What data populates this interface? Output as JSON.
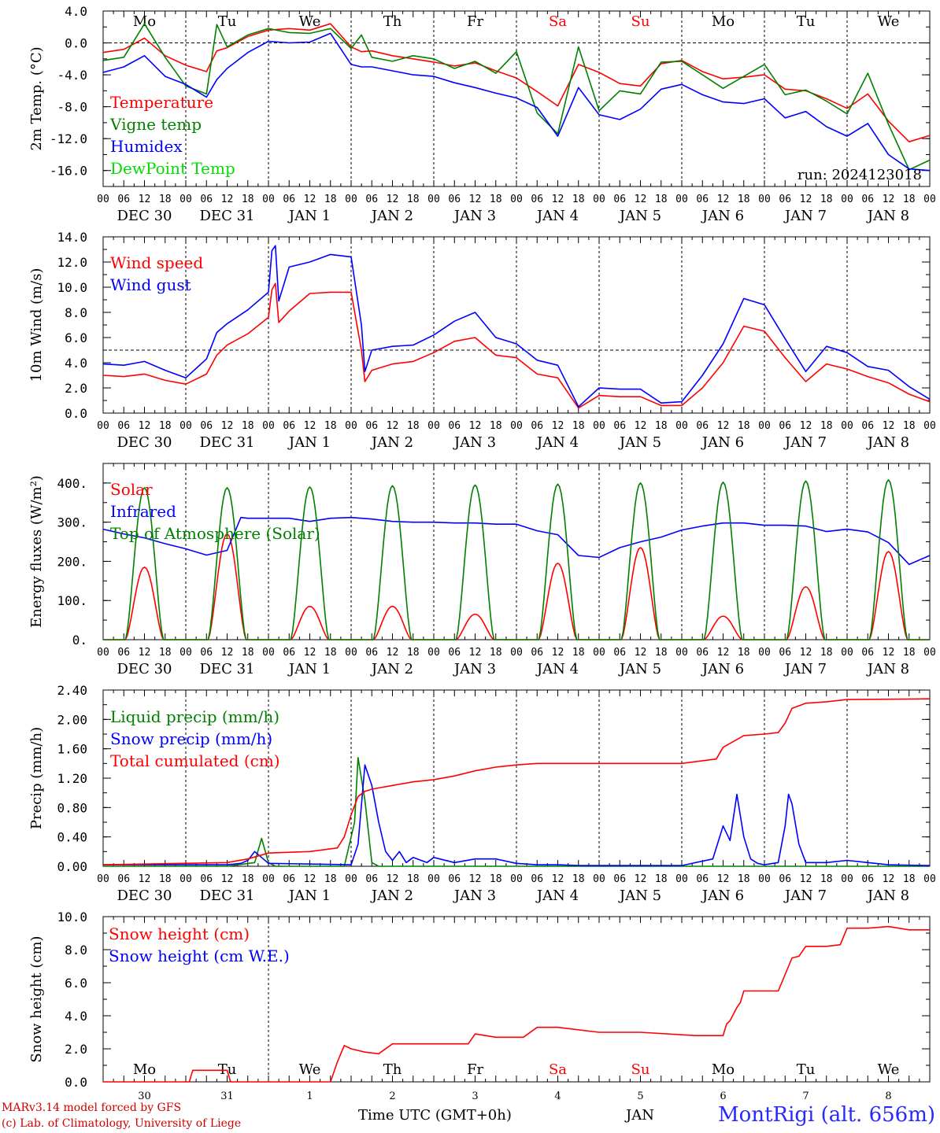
{
  "run_label": "run: 2024123018",
  "footer": {
    "model": "MARv3.14 model forced by GFS",
    "lab": "(c) Lab. of Climatology, University of Liege",
    "time_axis": "Time UTC (GMT+0h)",
    "month": "JAN",
    "station": "MontRigi (alt. 656m)"
  },
  "days": {
    "weekdays": [
      "Mo",
      "Tu",
      "We",
      "Th",
      "Fr",
      "Sa",
      "Su",
      "Mo",
      "Tu",
      "We"
    ],
    "weekend_flags": [
      false,
      false,
      false,
      false,
      false,
      true,
      true,
      false,
      false,
      false
    ],
    "dates": [
      "DEC 30",
      "DEC 31",
      "JAN  1",
      "JAN  2",
      "JAN  3",
      "JAN  4",
      "JAN  5",
      "JAN  6",
      "JAN  7",
      "JAN  8"
    ],
    "day_numbers": [
      "30",
      "31",
      "1",
      "2",
      "3",
      "4",
      "5",
      "6",
      "7",
      "8"
    ],
    "hour_ticks": [
      "00",
      "06",
      "12",
      "18"
    ],
    "last_tick": "00"
  },
  "colors": {
    "red": "#ff0000",
    "green": "#008000",
    "blue": "#0000ff",
    "lightgreen": "#00dd00",
    "weekend": "#ff0000"
  },
  "chart_data": [
    {
      "type": "line",
      "ylabel": "2m Temp. (°C)",
      "ylim": [
        -18,
        4
      ],
      "yticks": [
        4.0,
        0.0,
        -4.0,
        -8.0,
        -12.0,
        -16.0
      ],
      "ytick_labels": [
        "4.0",
        "0.0",
        "-4.0",
        "-8.0",
        "-12.0",
        "-16.0"
      ],
      "reference_line": 0.0,
      "x_unit": "hours since DEC 30 00 UTC",
      "series": [
        {
          "name": "Temperature",
          "color": "#ff0000",
          "x": [
            0,
            6,
            12,
            18,
            24,
            30,
            33,
            36,
            42,
            48,
            54,
            60,
            66,
            72,
            75,
            78,
            84,
            90,
            96,
            102,
            108,
            114,
            120,
            126,
            132,
            138,
            144,
            150,
            156,
            162,
            168,
            174,
            180,
            186,
            192,
            198,
            204,
            210,
            216,
            222,
            228,
            234,
            240
          ],
          "y": [
            -1.2,
            -0.8,
            0.6,
            -1.6,
            -2.8,
            -3.6,
            -1.0,
            -0.6,
            0.8,
            1.6,
            1.8,
            1.6,
            2.4,
            -0.5,
            -1.1,
            -1.0,
            -1.6,
            -2.0,
            -2.4,
            -2.9,
            -2.5,
            -3.5,
            -4.4,
            -6.1,
            -7.9,
            -2.7,
            -3.7,
            -5.1,
            -5.4,
            -2.6,
            -2.2,
            -3.6,
            -4.5,
            -4.3,
            -4.0,
            -5.8,
            -6.0,
            -7.0,
            -8.2,
            -6.4,
            -9.8,
            -12.4,
            -11.6
          ]
        },
        {
          "name": "Vigne temp",
          "color": "#008000",
          "x": [
            0,
            6,
            12,
            18,
            24,
            30,
            33,
            36,
            42,
            48,
            54,
            60,
            66,
            72,
            75,
            78,
            84,
            90,
            96,
            102,
            108,
            114,
            120,
            126,
            132,
            138,
            144,
            150,
            156,
            162,
            168,
            174,
            180,
            186,
            192,
            198,
            204,
            210,
            216,
            222,
            228,
            234,
            240
          ],
          "y": [
            -2.2,
            -1.8,
            2.4,
            -1.8,
            -5.4,
            -6.4,
            2.3,
            -0.5,
            1.0,
            1.8,
            1.3,
            1.2,
            1.8,
            -0.7,
            1.0,
            -1.8,
            -2.3,
            -1.6,
            -2.0,
            -3.2,
            -2.3,
            -3.8,
            -1.1,
            -8.8,
            -11.4,
            -0.5,
            -8.5,
            -6.0,
            -6.4,
            -2.4,
            -2.3,
            -4.0,
            -5.7,
            -4.2,
            -2.7,
            -6.5,
            -5.9,
            -7.3,
            -8.9,
            -3.8,
            -10.2,
            -15.9,
            -14.7
          ]
        },
        {
          "name": "Humidex",
          "color": "#0000ff",
          "x": [
            0,
            6,
            12,
            18,
            24,
            30,
            33,
            36,
            42,
            48,
            54,
            60,
            66,
            72,
            75,
            78,
            84,
            90,
            96,
            102,
            108,
            114,
            120,
            126,
            132,
            138,
            144,
            150,
            156,
            162,
            168,
            174,
            180,
            186,
            192,
            198,
            204,
            210,
            216,
            222,
            228,
            234,
            240
          ],
          "y": [
            -3.7,
            -3.0,
            -1.6,
            -4.2,
            -5.2,
            -6.8,
            -4.6,
            -3.2,
            -1.2,
            0.2,
            0.0,
            0.1,
            1.2,
            -2.7,
            -3.0,
            -3.0,
            -3.5,
            -4.0,
            -4.2,
            -5.0,
            -5.6,
            -6.3,
            -6.9,
            -8.1,
            -11.7,
            -5.6,
            -9.0,
            -9.6,
            -8.3,
            -5.8,
            -5.2,
            -6.5,
            -7.4,
            -7.6,
            -7.0,
            -9.4,
            -8.6,
            -10.5,
            -11.7,
            -10.1,
            -14.0,
            -15.8,
            -16.0
          ]
        },
        {
          "name": "DewPoint Temp",
          "color": "#00dd00",
          "x": [],
          "y": []
        }
      ]
    },
    {
      "type": "line",
      "ylabel": "10m Wind (m/s)",
      "ylim": [
        0,
        14
      ],
      "yticks": [
        0,
        2,
        4,
        6,
        8,
        10,
        12,
        14
      ],
      "ytick_labels": [
        "0.0",
        "2.0",
        "4.0",
        "6.0",
        "8.0",
        "10.0",
        "12.0",
        "14.0"
      ],
      "reference_line": 5.0,
      "x_unit": "hours since DEC 30 00 UTC",
      "series": [
        {
          "name": "Wind speed",
          "color": "#ff0000",
          "x": [
            0,
            6,
            12,
            18,
            24,
            30,
            33,
            36,
            42,
            48,
            49,
            50,
            51,
            54,
            60,
            66,
            72,
            75,
            76,
            78,
            84,
            90,
            96,
            102,
            108,
            114,
            120,
            126,
            132,
            138,
            144,
            150,
            156,
            162,
            168,
            174,
            180,
            186,
            192,
            198,
            204,
            210,
            216,
            222,
            228,
            234,
            240
          ],
          "y": [
            3.0,
            2.9,
            3.1,
            2.6,
            2.3,
            3.1,
            4.6,
            5.4,
            6.3,
            7.6,
            9.8,
            10.3,
            7.2,
            8.1,
            9.5,
            9.6,
            9.6,
            5.0,
            2.5,
            3.4,
            3.9,
            4.1,
            4.8,
            5.7,
            6.0,
            4.6,
            4.4,
            3.1,
            2.8,
            0.4,
            1.4,
            1.3,
            1.3,
            0.6,
            0.6,
            2.0,
            4.0,
            6.9,
            6.5,
            4.4,
            2.5,
            3.9,
            3.5,
            2.9,
            2.4,
            1.5,
            0.9
          ]
        },
        {
          "name": "Wind gust",
          "color": "#0000ff",
          "x": [
            0,
            6,
            12,
            18,
            24,
            30,
            33,
            36,
            42,
            48,
            49,
            50,
            51,
            54,
            60,
            66,
            72,
            75,
            76,
            78,
            84,
            90,
            96,
            102,
            108,
            114,
            120,
            126,
            132,
            138,
            144,
            150,
            156,
            162,
            168,
            174,
            180,
            186,
            192,
            198,
            204,
            210,
            216,
            222,
            228,
            234,
            240
          ],
          "y": [
            3.9,
            3.8,
            4.1,
            3.4,
            2.8,
            4.3,
            6.4,
            7.1,
            8.2,
            9.6,
            12.9,
            13.3,
            8.9,
            11.6,
            12.0,
            12.6,
            12.4,
            7.0,
            3.3,
            5.0,
            5.3,
            5.4,
            6.2,
            7.3,
            8.0,
            6.0,
            5.5,
            4.2,
            3.8,
            0.5,
            2.0,
            1.9,
            1.9,
            0.8,
            0.9,
            3.0,
            5.5,
            9.1,
            8.6,
            5.9,
            3.3,
            5.3,
            4.8,
            3.7,
            3.4,
            2.1,
            1.1
          ]
        }
      ]
    },
    {
      "type": "line",
      "ylabel": "Energy fluxes (W/m²)",
      "ylim": [
        0,
        450
      ],
      "yticks": [
        0,
        100,
        200,
        300,
        400
      ],
      "ytick_labels": [
        "0.",
        "100.",
        "200.",
        "300.",
        "400."
      ],
      "x_unit": "hours since DEC 30 00 UTC",
      "series": [
        {
          "name": "Solar",
          "color": "#ff0000",
          "profile": "daily",
          "peaks": [
            185,
            270,
            85,
            85,
            65,
            195,
            235,
            60,
            135,
            225
          ]
        },
        {
          "name": "Infrared",
          "color": "#0000ff",
          "x": [
            0,
            6,
            12,
            18,
            24,
            30,
            36,
            40,
            42,
            48,
            54,
            60,
            66,
            72,
            78,
            84,
            90,
            96,
            102,
            108,
            114,
            120,
            126,
            132,
            138,
            144,
            150,
            156,
            162,
            168,
            174,
            180,
            186,
            192,
            198,
            204,
            210,
            216,
            222,
            228,
            234,
            240
          ],
          "y": [
            282,
            270,
            260,
            245,
            232,
            216,
            228,
            312,
            310,
            310,
            310,
            302,
            310,
            312,
            308,
            302,
            300,
            300,
            298,
            298,
            295,
            295,
            278,
            268,
            215,
            210,
            235,
            250,
            262,
            280,
            290,
            298,
            298,
            292,
            292,
            290,
            276,
            282,
            275,
            248,
            192,
            215
          ]
        },
        {
          "name": "Top of Atmosphere (Solar)",
          "color": "#008000",
          "profile": "daily",
          "peaks": [
            388,
            388,
            390,
            393,
            395,
            397,
            400,
            402,
            405,
            408
          ]
        }
      ]
    },
    {
      "type": "line",
      "ylabel": "Precip (mm/h)",
      "ylim": [
        0,
        2.4
      ],
      "yticks": [
        0,
        0.4,
        0.8,
        1.2,
        1.6,
        2.0,
        2.4
      ],
      "ytick_labels": [
        "0.00",
        "0.40",
        "0.80",
        "1.20",
        "1.60",
        "2.00",
        "2.40"
      ],
      "x_unit": "hours since DEC 30 00 UTC",
      "series": [
        {
          "name": "Liquid precip (mm/h)",
          "color": "#008000",
          "x": [
            0,
            36,
            44,
            46,
            48,
            50,
            70,
            73,
            74,
            76,
            78,
            80,
            240
          ],
          "y": [
            0,
            0,
            0.05,
            0.38,
            0.05,
            0,
            0,
            0.6,
            1.48,
            0.9,
            0.05,
            0,
            0
          ]
        },
        {
          "name": "Snow precip (mm/h)",
          "color": "#0000ff",
          "x": [
            0,
            36,
            40,
            42,
            44,
            48,
            72,
            74,
            76,
            78,
            80,
            82,
            84,
            86,
            88,
            90,
            94,
            96,
            102,
            108,
            114,
            120,
            126,
            132,
            138,
            144,
            168,
            177,
            180,
            182,
            184,
            186,
            188,
            190,
            192,
            196,
            198,
            199,
            200,
            202,
            204,
            210,
            216,
            222,
            228,
            240
          ],
          "y": [
            0.02,
            0.02,
            0.04,
            0.08,
            0.2,
            0.04,
            0.02,
            0.3,
            1.38,
            1.1,
            0.6,
            0.2,
            0.08,
            0.2,
            0.05,
            0.12,
            0.05,
            0.12,
            0.05,
            0.1,
            0.1,
            0.04,
            0.02,
            0.02,
            0.01,
            0.01,
            0.01,
            0.1,
            0.55,
            0.35,
            0.98,
            0.4,
            0.1,
            0.04,
            0.02,
            0.05,
            0.55,
            0.98,
            0.85,
            0.3,
            0.05,
            0.05,
            0.08,
            0.05,
            0.02,
            0.01
          ]
        },
        {
          "name": "Total cumulated (cm)",
          "color": "#ff0000",
          "x": [
            0,
            36,
            42,
            48,
            60,
            68,
            70,
            72,
            74,
            76,
            78,
            84,
            90,
            96,
            102,
            108,
            114,
            120,
            126,
            132,
            168,
            178,
            180,
            186,
            192,
            196,
            198,
            200,
            204,
            210,
            216,
            240
          ],
          "y": [
            0.02,
            0.05,
            0.1,
            0.18,
            0.2,
            0.25,
            0.4,
            0.7,
            0.95,
            1.02,
            1.05,
            1.1,
            1.15,
            1.18,
            1.23,
            1.3,
            1.35,
            1.38,
            1.4,
            1.4,
            1.4,
            1.46,
            1.62,
            1.78,
            1.8,
            1.82,
            1.95,
            2.15,
            2.22,
            2.24,
            2.27,
            2.28
          ]
        }
      ]
    },
    {
      "type": "line",
      "ylabel": "Snow height (cm)",
      "ylim": [
        0,
        10
      ],
      "yticks": [
        0,
        2,
        4,
        6,
        8,
        10
      ],
      "ytick_labels": [
        "0.0",
        "2.0",
        "4.0",
        "6.0",
        "8.0",
        "10.0"
      ],
      "x_unit": "hours since DEC 30 00 UTC",
      "series": [
        {
          "name": "Snow height (cm)",
          "color": "#ff0000",
          "x": [
            0,
            25,
            26,
            36,
            37,
            48,
            66,
            68,
            70,
            72,
            76,
            80,
            84,
            86,
            96,
            106,
            108,
            114,
            122,
            126,
            132,
            144,
            156,
            172,
            180,
            181,
            182,
            184,
            185,
            186,
            188,
            196,
            198,
            200,
            202,
            204,
            206,
            210,
            214,
            216,
            222,
            228,
            234,
            240
          ],
          "y": [
            0,
            0,
            0.7,
            0.7,
            0,
            0,
            0,
            1.2,
            2.2,
            2.0,
            1.8,
            1.7,
            2.3,
            2.3,
            2.3,
            2.3,
            2.9,
            2.7,
            2.7,
            3.3,
            3.3,
            3.0,
            3.0,
            2.8,
            2.8,
            3.5,
            3.7,
            4.5,
            4.8,
            5.5,
            5.5,
            5.5,
            6.5,
            7.5,
            7.6,
            8.2,
            8.2,
            8.2,
            8.3,
            9.3,
            9.3,
            9.4,
            9.2,
            9.2
          ]
        },
        {
          "name": "Snow height (cm W.E.)",
          "color": "#0000ff",
          "x": [],
          "y": []
        }
      ]
    }
  ]
}
